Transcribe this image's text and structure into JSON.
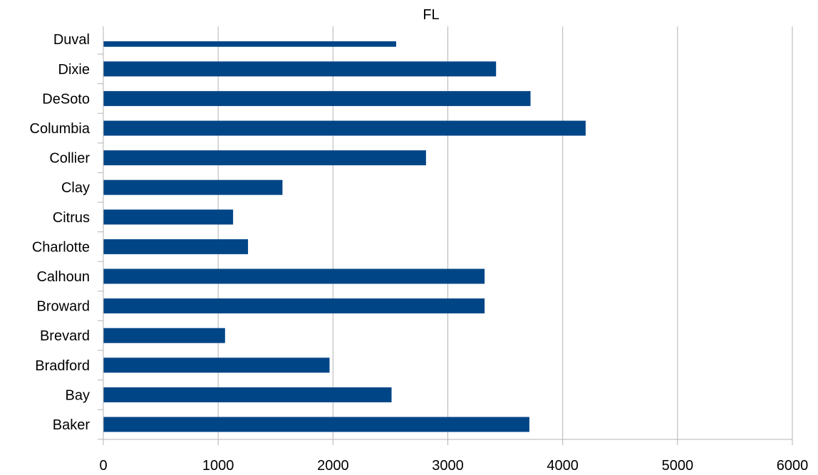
{
  "chart_data": {
    "type": "bar",
    "orientation": "horizontal",
    "title": "FL",
    "xlabel": "",
    "ylabel": "",
    "categories": [
      "Baker",
      "Bay",
      "Bradford",
      "Brevard",
      "Broward",
      "Calhoun",
      "Charlotte",
      "Citrus",
      "Clay",
      "Collier",
      "Columbia",
      "DeSoto",
      "Dixie",
      "Duval"
    ],
    "values": [
      3710,
      2510,
      1970,
      1060,
      3320,
      3320,
      1260,
      1130,
      1560,
      2810,
      4200,
      3720,
      3420,
      2550
    ],
    "xlim": [
      0,
      6000
    ],
    "xticks": [
      0,
      1000,
      2000,
      3000,
      4000,
      5000,
      6000
    ],
    "grid": "vertical",
    "legend": "none",
    "bar_color": "#004586",
    "grid_color": "#b3b3b3"
  }
}
